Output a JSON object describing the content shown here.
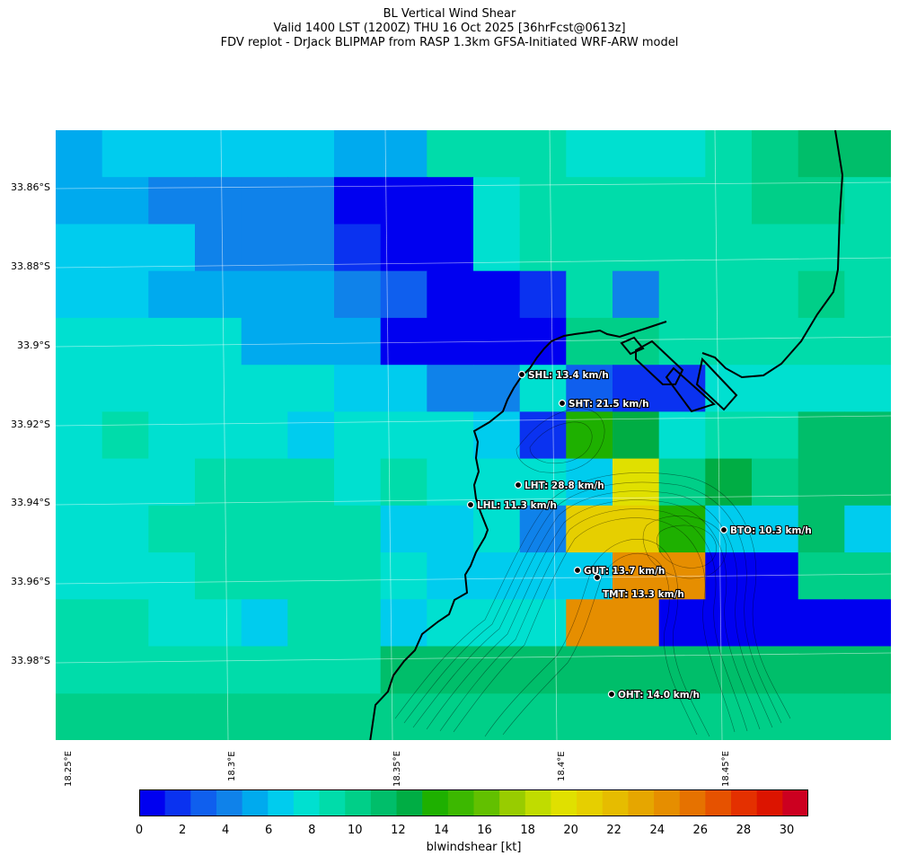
{
  "title": {
    "line1": "BL Vertical Wind Shear",
    "line2": "Valid 1400 LST (1200Z) THU 16 Oct 2025 [36hrFcst@0613z]",
    "line3": "FDV replot - DrJack BLIPMAP from RASP 1.3km GFSA-Initiated WRF-ARW model"
  },
  "lat_ticks": [
    "33.86°S",
    "33.88°S",
    "33.9°S",
    "33.92°S",
    "33.94°S",
    "33.96°S",
    "33.98°S"
  ],
  "lon_ticks": [
    "18.25°E",
    "18.3°E",
    "18.35°E",
    "18.4°E",
    "18.45°E"
  ],
  "colorbar": {
    "label": "blwindshear [kt]",
    "ticks": [
      "0",
      "2",
      "4",
      "6",
      "8",
      "10",
      "12",
      "14",
      "16",
      "18",
      "20",
      "22",
      "24",
      "26",
      "28",
      "30"
    ],
    "colors": [
      "#0000f0",
      "#0a32f0",
      "#0f5fee",
      "#0f82ea",
      "#00aaee",
      "#00ccee",
      "#00e0d0",
      "#00dcaa",
      "#00cf88",
      "#00be6a",
      "#00ad44",
      "#1eb000",
      "#3cb800",
      "#62c000",
      "#98cc00",
      "#c0dc00",
      "#e0e000",
      "#e6cf00",
      "#e6bc00",
      "#e6a600",
      "#e68e00",
      "#e67200",
      "#e65200",
      "#e43000",
      "#dc1400",
      "#cc0020"
    ]
  },
  "grid": {
    "rows": [
      "45555544777666789999999BBBDD",
      "44333300067777788777888AABBFG",
      "555333100677777777788AA88BBFG",
      "55444432001737778788AABBE99",
      "66664440000887777778AABBFF9",
      "66666655336211666666AADD99",
      "67666566651BA6779999",
      "666777676665G8A8999",
      "66777775563HHB5595A",
      "666777765555KK008",
      "77665775666KK00",
      "7777777999"
    ]
  },
  "stations": [
    {
      "code": "SHL",
      "text": "SHL: 13.4 km/h"
    },
    {
      "code": "SHT",
      "text": "SHT: 21.5 km/h"
    },
    {
      "code": "LHT",
      "text": "LHT: 28.8 km/h"
    },
    {
      "code": "LHL",
      "text": "LHL: 11.3 km/h"
    },
    {
      "code": "BTO",
      "text": "BTO: 10.3 km/h"
    },
    {
      "code": "GUT",
      "text": "GUT: 13.7 km/h"
    },
    {
      "code": "TMT",
      "text": "TMT: 13.3 km/h"
    },
    {
      "code": "OHT",
      "text": "OHT: 14.0 km/h"
    }
  ]
}
